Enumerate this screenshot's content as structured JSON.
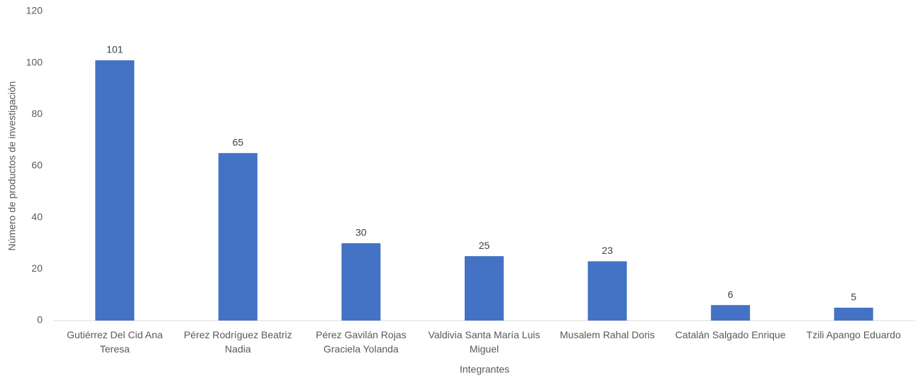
{
  "chart_data": {
    "type": "bar",
    "x_label": "Integrantes",
    "y_label": "Número de productos de investigación",
    "categories": [
      "Gutiérrez Del Cid Ana Teresa",
      "Pérez Rodríguez Beatriz Nadia",
      "Pérez Gavilán Rojas Graciela Yolanda",
      "Valdivia Santa María Luis Miguel",
      "Musalem Rahal Doris",
      "Catalán Salgado Enrique",
      "Tzili Apango Eduardo"
    ],
    "values": [
      101,
      65,
      30,
      25,
      23,
      6,
      5
    ],
    "color": "#4472c4",
    "ylim": [
      0,
      120
    ],
    "yticks": [
      0,
      20,
      40,
      60,
      80,
      100,
      120
    ],
    "grid": false
  }
}
